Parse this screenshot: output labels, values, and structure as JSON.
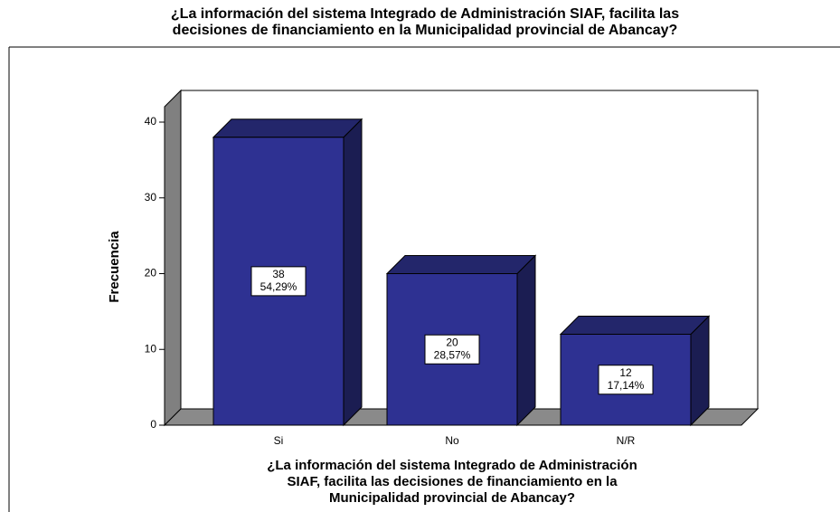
{
  "chart_data": {
    "type": "bar3d",
    "title": [
      "¿La información  del  sistema Integrado de Administración SIAF, facilita las",
      "decisiones de financiamiento  en la  Municipalidad provincial de Abancay?"
    ],
    "x_label": [
      "¿La información  del  sistema Integrado de Administración",
      "SIAF, facilita las decisiones de financiamiento  en la",
      "Municipalidad provincial de Abancay?"
    ],
    "y_label": "Frecuencia",
    "categories": [
      "Si",
      "No",
      "N/R"
    ],
    "values": [
      38,
      20,
      12
    ],
    "percentages": [
      54.29,
      28.57,
      17.14
    ],
    "percentage_labels": [
      "54,29%",
      "28,57%",
      "17,14%"
    ],
    "color": "#2e3192",
    "ylim": [
      0,
      40
    ],
    "yticks": [
      0,
      10,
      20,
      30,
      40
    ]
  }
}
